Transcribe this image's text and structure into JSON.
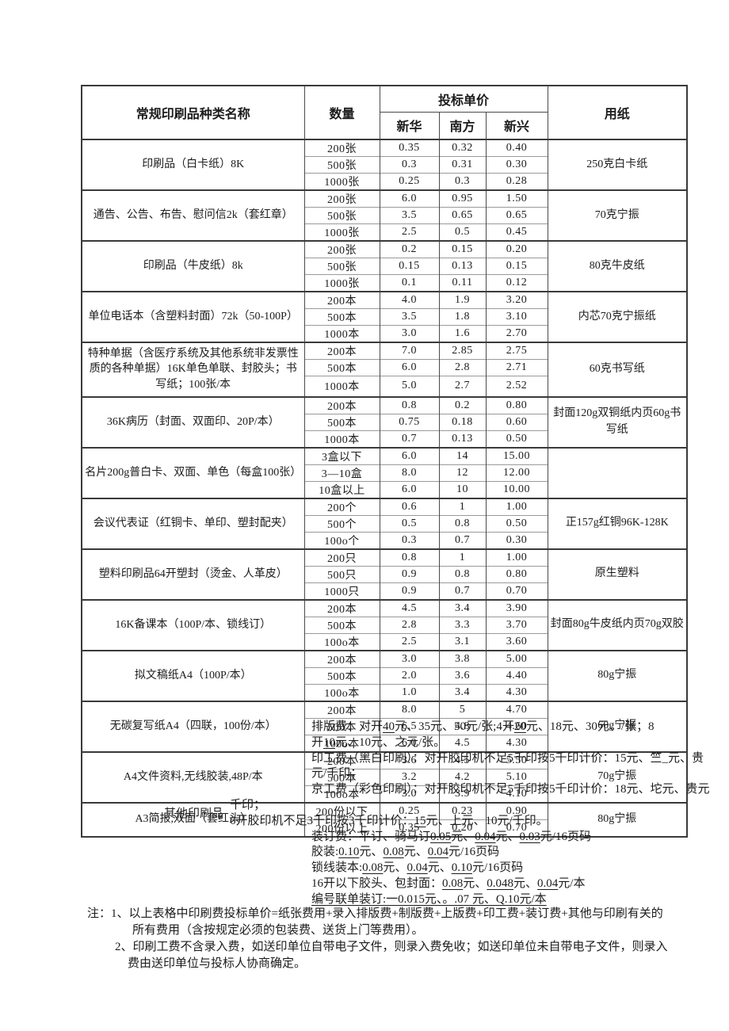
{
  "table": {
    "header": {
      "product": "常规印刷品种类名称",
      "qty": "数量",
      "price": "投标单价",
      "bidders": [
        "新华",
        "南方",
        "新兴"
      ],
      "paper": "用纸"
    },
    "groups": [
      {
        "name": "印刷品（白卡纸）8K",
        "paper": "250克白卡纸",
        "rows": [
          {
            "qty": "200张",
            "v": [
              "0.35",
              "0.32",
              "0.40"
            ]
          },
          {
            "qty": "500张",
            "v": [
              "0.3",
              "0.31",
              "0.30"
            ]
          },
          {
            "qty": "1000张",
            "v": [
              "0.25",
              "0.3",
              "0.28"
            ]
          }
        ]
      },
      {
        "name": "通告、公告、布告、慰问信2k（套红章）",
        "paper": "70克宁振",
        "rows": [
          {
            "qty": "200张",
            "v": [
              "6.0",
              "0.95",
              "1.50"
            ]
          },
          {
            "qty": "500张",
            "v": [
              "3.5",
              "0.65",
              "0.65"
            ]
          },
          {
            "qty": "1000张",
            "v": [
              "2.5",
              "0.5",
              "0.45"
            ]
          }
        ]
      },
      {
        "name": "印刷品（牛皮纸）8k",
        "paper": "80克牛皮纸",
        "rows": [
          {
            "qty": "200张",
            "v": [
              "0.2",
              "0.15",
              "0.20"
            ]
          },
          {
            "qty": "500张",
            "v": [
              "0.15",
              "0.13",
              "0.15"
            ]
          },
          {
            "qty": "1000张",
            "v": [
              "0.1",
              "0.11",
              "0.12"
            ]
          }
        ]
      },
      {
        "name": "单位电话本（含塑料封面）72k（50-100P）",
        "paper": "内芯70克宁振纸",
        "rows": [
          {
            "qty": "200本",
            "v": [
              "4.0",
              "1.9",
              "3.20"
            ]
          },
          {
            "qty": "500本",
            "v": [
              "3.5",
              "1.8",
              "3.10"
            ]
          },
          {
            "qty": "1000本",
            "v": [
              "3.0",
              "1.6",
              "2.70"
            ]
          }
        ]
      },
      {
        "name": "特种单据（含医疗系统及其他系统非发票性质的各种单据）16K单色单联、封胶头；书写纸；100张/本",
        "paper": "60克书写纸",
        "rows": [
          {
            "qty": "200本",
            "v": [
              "7.0",
              "2.85",
              "2.75"
            ]
          },
          {
            "qty": "500本",
            "v": [
              "6.0",
              "2.8",
              "2.71"
            ]
          },
          {
            "qty": "1000本",
            "v": [
              "5.0",
              "2.7",
              "2.52"
            ],
            "tall": true
          }
        ]
      },
      {
        "name": "36K病历（封面、双面印、20P/本）",
        "paper": "封面120g双铜纸内页60g书写纸",
        "rows": [
          {
            "qty": "200本",
            "v": [
              "0.8",
              "0.2",
              "0.80"
            ]
          },
          {
            "qty": "500本",
            "v": [
              "0.75",
              "0.18",
              "0.60"
            ]
          },
          {
            "qty": "1000本",
            "v": [
              "0.7",
              "0.13",
              "0.50"
            ]
          }
        ]
      },
      {
        "name": "名片200g普白卡、双面、单色（每盒100张）",
        "paper": "",
        "rows": [
          {
            "qty": "3盒以下",
            "v": [
              "6.0",
              "14",
              "15.00"
            ]
          },
          {
            "qty": "3—10盒",
            "v": [
              "8.0",
              "12",
              "12.00"
            ]
          },
          {
            "qty": "10盒以上",
            "v": [
              "6.0",
              "10",
              "10.00"
            ]
          }
        ]
      },
      {
        "name": "会议代表证（红铜卡、单印、塑封配夹）",
        "paper": "正157g红铜96K-128K",
        "rows": [
          {
            "qty": "200个",
            "v": [
              "0.6",
              "1",
              "1.00"
            ]
          },
          {
            "qty": "500个",
            "v": [
              "0.5",
              "0.8",
              "0.50"
            ]
          },
          {
            "qty": "100o个",
            "v": [
              "0.3",
              "0.7",
              "0.30"
            ]
          }
        ]
      },
      {
        "name": "塑料印刷品64开塑封（烫金、人革皮）",
        "paper": "原生塑料",
        "rows": [
          {
            "qty": "200只",
            "v": [
              "0.8",
              "1",
              "1.00"
            ]
          },
          {
            "qty": "500只",
            "v": [
              "0.9",
              "0.8",
              "0.80"
            ]
          },
          {
            "qty": "1000只",
            "v": [
              "0.9",
              "0.7",
              "0.70"
            ]
          }
        ]
      },
      {
        "name": "16K备课本（100P/本、锁线订）",
        "paper": "封面80g牛皮纸内页70g双胶",
        "rows": [
          {
            "qty": "200本",
            "v": [
              "4.5",
              "3.4",
              "3.90"
            ]
          },
          {
            "qty": "500本",
            "v": [
              "2.8",
              "3.3",
              "3.70"
            ]
          },
          {
            "qty": "100o本",
            "v": [
              "2.5",
              "3.1",
              "3.60"
            ]
          }
        ]
      },
      {
        "name": "拟文稿纸A4（100P/本）",
        "paper": "80g宁振",
        "rows": [
          {
            "qty": "200本",
            "v": [
              "3.0",
              "3.8",
              "5.00"
            ]
          },
          {
            "qty": "500本",
            "v": [
              "2.0",
              "3.6",
              "4.40"
            ]
          },
          {
            "qty": "100o本",
            "v": [
              "1.0",
              "3.4",
              "4.30"
            ]
          }
        ]
      },
      {
        "name": "无碳复写纸A4（四联，100份/本）",
        "paper": "60g宁振",
        "rows": [
          {
            "qty": "200本",
            "v": [
              "8.0",
              "5",
              "4.70"
            ]
          },
          {
            "qty": "500本",
            "v": [
              "6.5",
              "4.8",
              "4.60"
            ]
          },
          {
            "qty": "100o本",
            "v": [
              "6.0",
              "4.5",
              "4.30"
            ]
          }
        ]
      },
      {
        "name": "A4文件资料,无线胶装,48P/本",
        "paper": "70g宁振",
        "rows": [
          {
            "qty": "200本",
            "v": [
              "3.6",
              "4.5",
              "5.50"
            ]
          },
          {
            "qty": "500本",
            "v": [
              "3.2",
              "4.2",
              "5.10"
            ]
          },
          {
            "qty": "100o本",
            "v": [
              "3.0",
              "3.9",
              "4.10"
            ]
          }
        ]
      },
      {
        "name": "A3简报,双面（套红头）",
        "paper": "80g宁振",
        "rows": [
          {
            "qty": "200份以下",
            "v": [
              "0.25",
              "0.23",
              "0.90"
            ]
          },
          {
            "qty": "200份以上",
            "v": [
              "0.35",
              "0.20",
              "0.70"
            ]
          }
        ]
      }
    ]
  },
  "other": {
    "label": "其他印刷品",
    "lines": [
      {
        "segs": [
          {
            "t": "排版费：对开"
          },
          {
            "t": "40",
            "u": true
          },
          {
            "t": "元、35元、50元/张;4开"
          },
          {
            "t": "20",
            "u": true
          },
          {
            "t": "元、18元、30元、/张；8"
          }
        ]
      },
      {
        "segs": [
          {
            "t": "开"
          },
          {
            "t": "10",
            "u": true
          },
          {
            "t": "元、10元、之元/张。"
          }
        ]
      },
      {
        "segs": [
          {
            "t": "印工费（黑白印刷）：对开胶印机不足5千印按5千印计价：15元、竺_元、贵"
          }
        ]
      },
      {
        "segs": [
          {
            "t": "元/千印；"
          }
        ]
      },
      {
        "segs": [
          {
            "t": "京工费（彩色印刷）：对开胶印机不足5千印按5千印计价：18元、坨元、贵元"
          }
        ]
      },
      {
        "out": true,
        "segs": [
          {
            "t": "千印；"
          }
        ]
      },
      {
        "out": true,
        "segs": [
          {
            "t": "6开胶印机不足3千印按3千印计价："
          },
          {
            "t": "15",
            "u": true
          },
          {
            "t": "元、上元、10元/千印。"
          }
        ]
      },
      {
        "segs": [
          {
            "t": "装订费：平订、骑马订"
          },
          {
            "t": "0.05",
            "u": true
          },
          {
            "t": "元、"
          },
          {
            "t": "0.04",
            "u": true
          },
          {
            "t": "元、"
          },
          {
            "t": "0.03",
            "u": true
          },
          {
            "t": "元/16页码"
          }
        ]
      },
      {
        "segs": [
          {
            "t": "胶装:"
          },
          {
            "t": "0.10",
            "u": true
          },
          {
            "t": "元、"
          },
          {
            "t": "0.08",
            "u": true
          },
          {
            "t": "元、"
          },
          {
            "t": "0.04",
            "u": true
          },
          {
            "t": "元/16页码"
          }
        ]
      },
      {
        "segs": [
          {
            "t": "锁线装本:"
          },
          {
            "t": "0.08",
            "u": true
          },
          {
            "t": "元、"
          },
          {
            "t": "0.04",
            "u": true
          },
          {
            "t": "元、"
          },
          {
            "t": "0.10",
            "u": true
          },
          {
            "t": "元/16页码"
          }
        ]
      },
      {
        "segs": [
          {
            "t": "16开以下胶头、包封面："
          },
          {
            "t": "0.08",
            "u": true
          },
          {
            "t": "元、"
          },
          {
            "t": "0.048",
            "u": true
          },
          {
            "t": "元、"
          },
          {
            "t": "0.04",
            "u": true
          },
          {
            "t": "元/本"
          }
        ]
      },
      {
        "segs": [
          {
            "t": "编号联单装订:一0.015元、。.07 元、Q.10元/本",
            "u": true
          }
        ]
      }
    ]
  },
  "notes": {
    "lines": [
      "注：1、以上表格中印刷费投标单价=纸张费用+录入排版费+制版费+上版费+印工费+装订费+其他与印刷有关的",
      "所有费用（含按规定必须的包装费、送货上门等费用）。",
      "2、印刷工费不含录入费，如送印单位自带电子文件，则录入费免收；如送印单位未自带电子文件，则录入",
      "费由送印单位与投标人协商确定。"
    ]
  }
}
